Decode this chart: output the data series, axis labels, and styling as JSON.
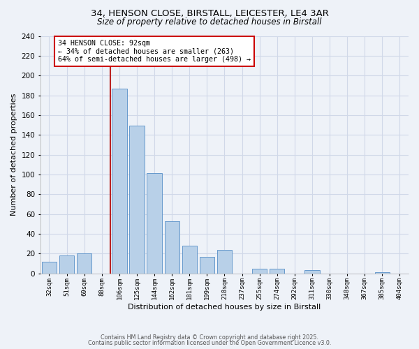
{
  "title_line1": "34, HENSON CLOSE, BIRSTALL, LEICESTER, LE4 3AR",
  "title_line2": "Size of property relative to detached houses in Birstall",
  "xlabel": "Distribution of detached houses by size in Birstall",
  "ylabel": "Number of detached properties",
  "categories": [
    "32sqm",
    "51sqm",
    "69sqm",
    "88sqm",
    "106sqm",
    "125sqm",
    "144sqm",
    "162sqm",
    "181sqm",
    "199sqm",
    "218sqm",
    "237sqm",
    "255sqm",
    "274sqm",
    "292sqm",
    "311sqm",
    "330sqm",
    "348sqm",
    "367sqm",
    "385sqm",
    "404sqm"
  ],
  "values": [
    12,
    18,
    20,
    0,
    187,
    149,
    101,
    53,
    28,
    17,
    24,
    0,
    5,
    5,
    0,
    3,
    0,
    0,
    0,
    1,
    0
  ],
  "bar_color": "#b8d0e8",
  "bar_edge_color": "#6699cc",
  "vline_color": "#bb2222",
  "annotation_text": "34 HENSON CLOSE: 92sqm\n← 34% of detached houses are smaller (263)\n64% of semi-detached houses are larger (498) →",
  "annotation_box_edge_color": "#cc0000",
  "annotation_box_face_color": "#ffffff",
  "ylim": [
    0,
    240
  ],
  "yticks": [
    0,
    20,
    40,
    60,
    80,
    100,
    120,
    140,
    160,
    180,
    200,
    220,
    240
  ],
  "grid_color": "#d0d8e8",
  "footer_line1": "Contains HM Land Registry data © Crown copyright and database right 2025.",
  "footer_line2": "Contains public sector information licensed under the Open Government Licence v3.0.",
  "background_color": "#eef2f8"
}
